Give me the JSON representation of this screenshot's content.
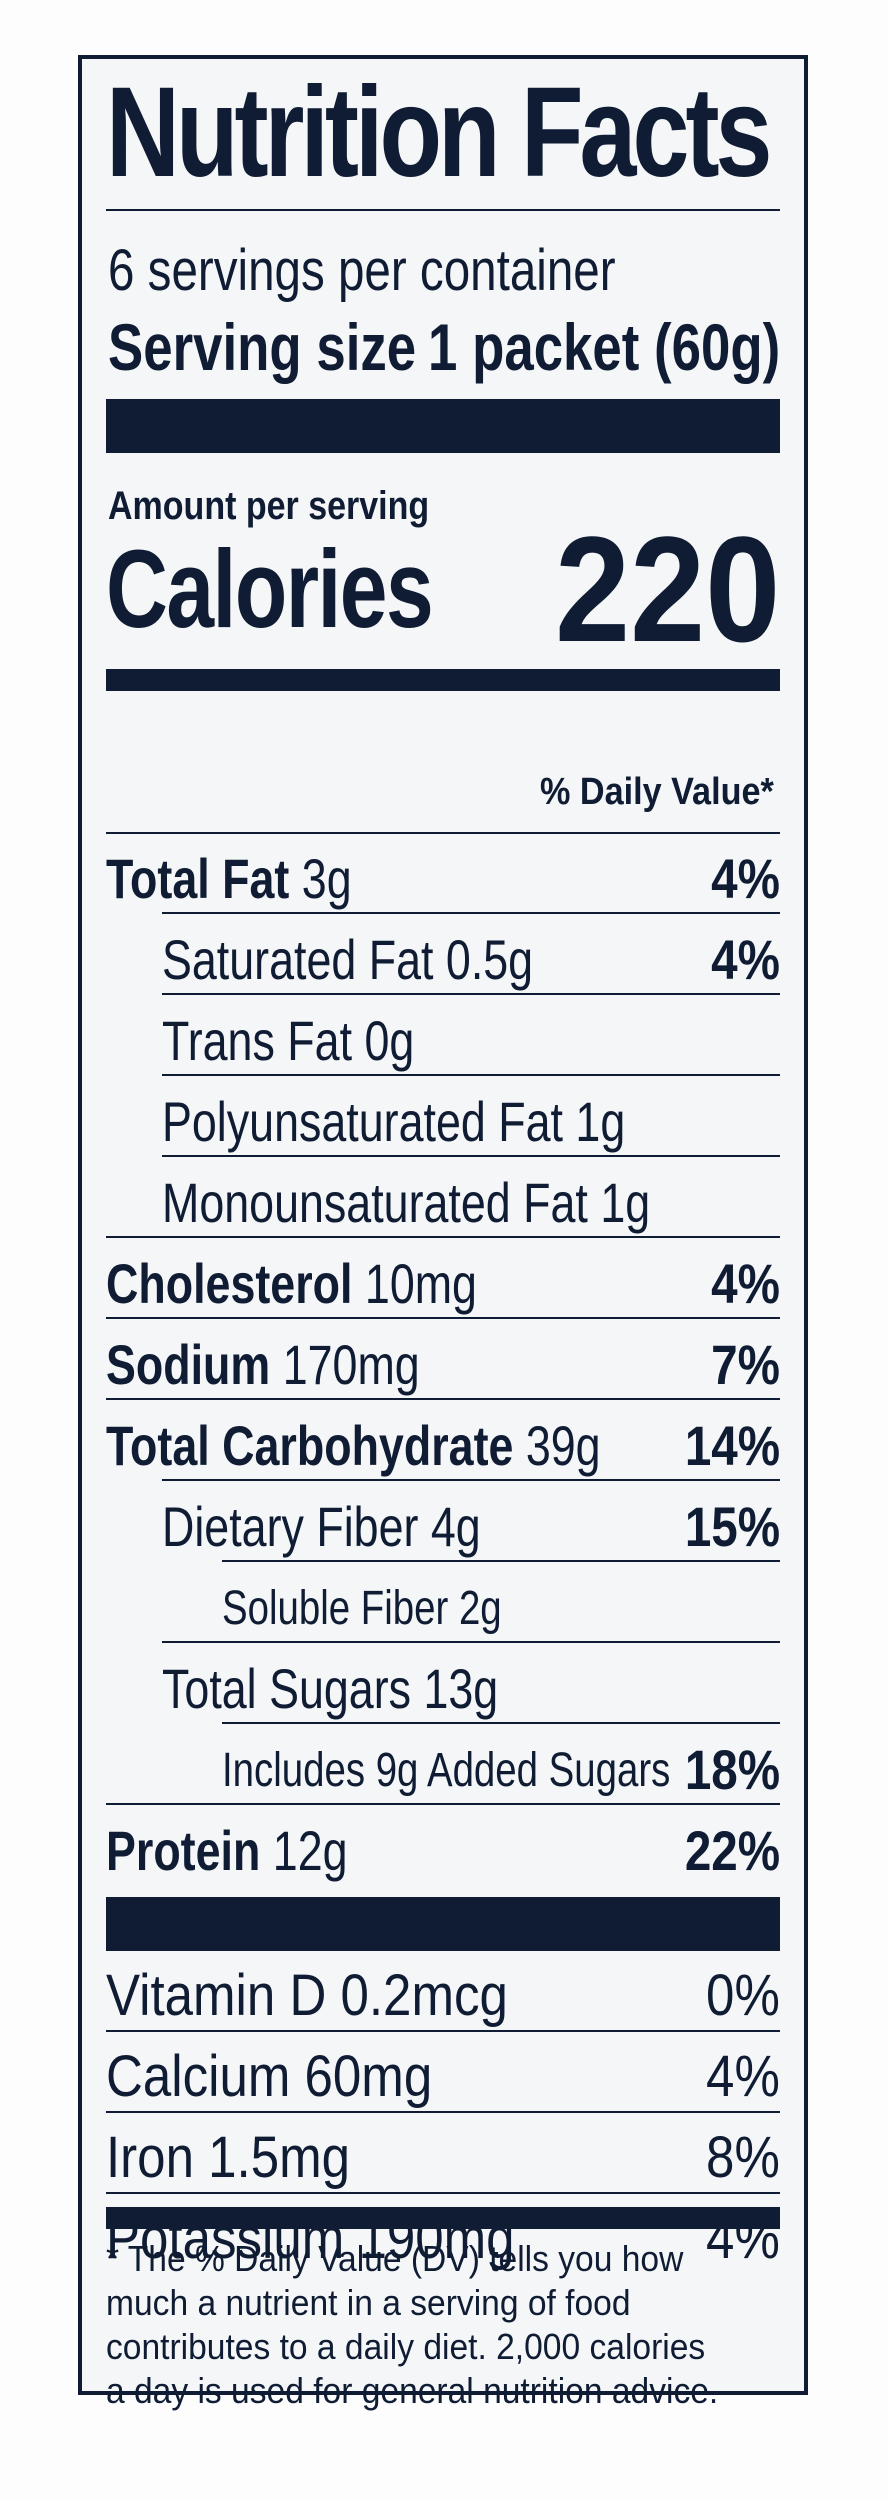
{
  "title": "Nutrition Facts",
  "servings_per_container": "6 servings per container",
  "serving_size_label": "Serving size",
  "serving_size_value": "1 packet (60g)",
  "amount_per_serving": "Amount per serving",
  "calories_label": "Calories",
  "calories_value": "220",
  "daily_value_header": "% Daily Value*",
  "nutrients": [
    {
      "name": "Total Fat",
      "amount": "3g",
      "dv": "4%"
    },
    {
      "name": "Saturated Fat",
      "amount": "0.5g",
      "dv": "4%"
    },
    {
      "name": "Trans Fat",
      "amount": "0g",
      "dv": ""
    },
    {
      "name": "Polyunsaturated Fat",
      "amount": "1g",
      "dv": ""
    },
    {
      "name": "Monounsaturated Fat",
      "amount": "1g",
      "dv": ""
    },
    {
      "name": "Cholesterol",
      "amount": "10mg",
      "dv": "4%"
    },
    {
      "name": "Sodium",
      "amount": "170mg",
      "dv": "7%"
    },
    {
      "name": "Total Carbohydrate",
      "amount": "39g",
      "dv": "14%"
    },
    {
      "name": "Dietary Fiber",
      "amount": "4g",
      "dv": "15%"
    },
    {
      "name": "Soluble Fiber",
      "amount": "2g",
      "dv": ""
    },
    {
      "name": "Total Sugars",
      "amount": "13g",
      "dv": ""
    },
    {
      "name": "Includes 9g Added Sugars",
      "amount": "",
      "dv": "18%"
    },
    {
      "name": "Protein",
      "amount": "12g",
      "dv": "22%"
    }
  ],
  "vitamins": [
    {
      "name": "Vitamin D 0.2mcg",
      "dv": "0%"
    },
    {
      "name": "Calcium 60mg",
      "dv": "4%"
    },
    {
      "name": "Iron 1.5mg",
      "dv": "8%"
    },
    {
      "name": "Potassium 190mg",
      "dv": "4%"
    }
  ],
  "footnote_lines": [
    "* The % Daily Value (DV) tells you how",
    "much a nutrient in a serving of food",
    "contributes to a daily diet. 2,000 calories",
    "a day is used for general nutrition advice."
  ]
}
